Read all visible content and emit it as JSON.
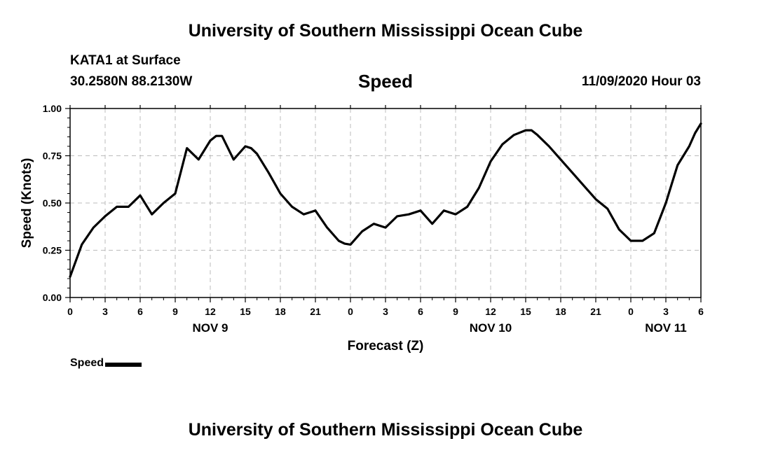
{
  "header": {
    "title": "University of Southern Mississippi Ocean Cube",
    "station": "KATA1 at Surface",
    "coords": "30.2580N 88.2130W",
    "variable": "Speed",
    "datetime": "11/09/2020 Hour 03"
  },
  "footer": {
    "title": "University of Southern Mississippi Ocean Cube"
  },
  "chart_data": {
    "type": "line",
    "title": "Speed",
    "xlabel": "Forecast (Z)",
    "ylabel": "Speed (Knots)",
    "xlim": [
      0,
      54
    ],
    "ylim": [
      0,
      1
    ],
    "grid": true,
    "x_tick_labels": [
      "0",
      "3",
      "6",
      "9",
      "12",
      "15",
      "18",
      "21",
      "0",
      "3",
      "6",
      "9",
      "12",
      "15",
      "18",
      "21",
      "0",
      "3",
      "6"
    ],
    "y_tick_labels": [
      "0.00",
      "0.25",
      "0.50",
      "0.75",
      "1.00"
    ],
    "y_ticks": [
      0,
      0.25,
      0.5,
      0.75,
      1.0
    ],
    "date_labels": [
      {
        "label": "NOV 9",
        "x": 12
      },
      {
        "label": "NOV 10",
        "x": 36
      },
      {
        "label": "NOV 11",
        "x": 51
      }
    ],
    "series": [
      {
        "name": "Speed",
        "color": "#000000",
        "x": [
          0,
          1,
          2,
          3,
          4,
          5,
          6,
          7,
          8,
          9,
          10,
          11,
          12,
          12.5,
          13,
          14,
          15,
          15.5,
          16,
          17,
          18,
          19,
          20,
          20.5,
          21,
          22,
          23,
          23.5,
          24,
          25,
          26,
          27,
          28,
          29,
          30,
          31,
          32,
          33,
          34,
          35,
          36,
          37,
          38,
          39,
          39.5,
          40,
          41,
          42,
          43,
          44,
          45,
          46,
          47,
          48,
          49,
          50,
          51,
          51.5,
          52,
          53,
          53.5,
          54
        ],
        "y": [
          0.11,
          0.28,
          0.37,
          0.43,
          0.48,
          0.48,
          0.54,
          0.44,
          0.5,
          0.55,
          0.79,
          0.73,
          0.83,
          0.855,
          0.855,
          0.73,
          0.8,
          0.79,
          0.76,
          0.66,
          0.55,
          0.48,
          0.44,
          0.45,
          0.46,
          0.37,
          0.3,
          0.285,
          0.28,
          0.35,
          0.39,
          0.37,
          0.43,
          0.44,
          0.46,
          0.39,
          0.46,
          0.44,
          0.48,
          0.58,
          0.72,
          0.81,
          0.86,
          0.885,
          0.885,
          0.86,
          0.8,
          0.73,
          0.66,
          0.59,
          0.52,
          0.47,
          0.36,
          0.3,
          0.3,
          0.34,
          0.5,
          0.6,
          0.7,
          0.8,
          0.87,
          0.92
        ]
      }
    ],
    "legend": {
      "label": "Speed",
      "position": "bottom-left"
    }
  }
}
